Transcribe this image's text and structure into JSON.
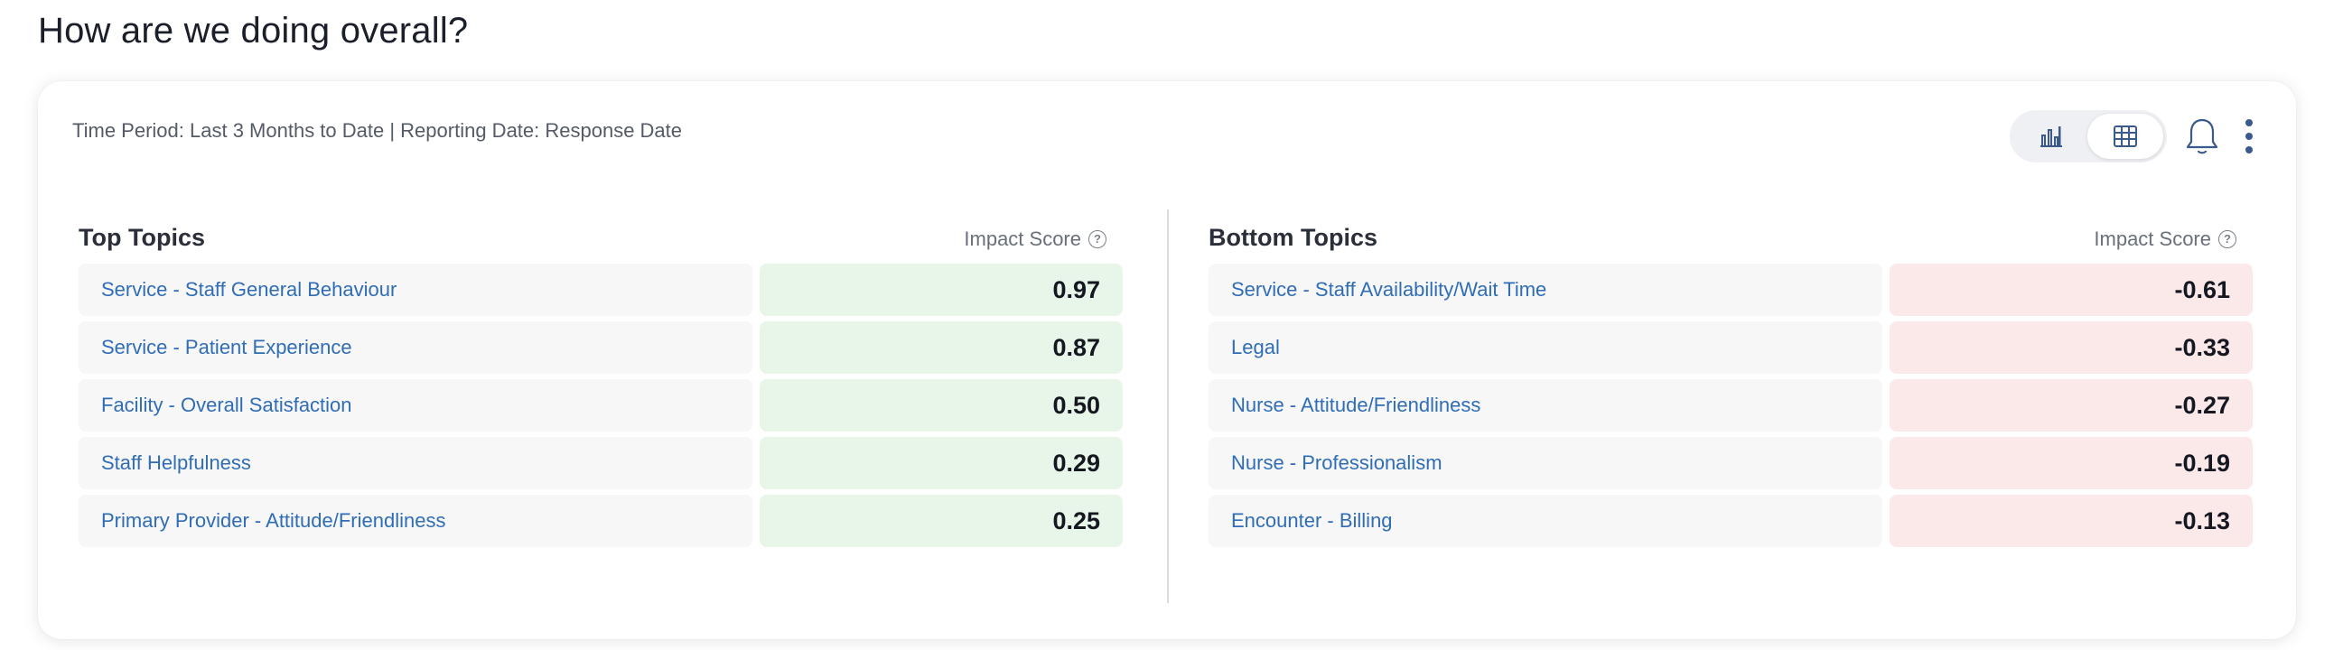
{
  "page": {
    "title": "How are we doing overall?"
  },
  "card": {
    "filter_text": "Time Period: Last 3 Months to Date | Reporting Date: Response Date",
    "view_toggle": {
      "selected": "table",
      "options": [
        "chart-icon",
        "table-icon"
      ]
    },
    "icons": [
      "bar-chart-icon",
      "table-icon",
      "bell-icon",
      "more-vertical-icon"
    ]
  },
  "top_topics": {
    "title": "Top Topics",
    "score_header": "Impact Score",
    "help_glyph": "?",
    "rows": [
      {
        "name": "Service - Staff General Behaviour",
        "score": "0.97"
      },
      {
        "name": "Service - Patient Experience",
        "score": "0.87"
      },
      {
        "name": "Facility - Overall Satisfaction",
        "score": "0.50"
      },
      {
        "name": "Staff Helpfulness",
        "score": "0.29"
      },
      {
        "name": "Primary Provider - Attitude/Friendliness",
        "score": "0.25"
      }
    ]
  },
  "bottom_topics": {
    "title": "Bottom Topics",
    "score_header": "Impact Score",
    "help_glyph": "?",
    "rows": [
      {
        "name": "Service - Staff Availability/Wait Time",
        "score": "-0.61"
      },
      {
        "name": "Legal",
        "score": "-0.33"
      },
      {
        "name": "Nurse - Attitude/Friendliness",
        "score": "-0.27"
      },
      {
        "name": "Nurse - Professionalism",
        "score": "-0.19"
      },
      {
        "name": "Encounter - Billing",
        "score": "-0.13"
      }
    ]
  },
  "colors": {
    "link": "#2f6db5",
    "positive_bg": "#e8f5e9",
    "negative_bg": "#fbe8e8",
    "row_bg": "#f7f7f8",
    "icon": "#3a5a8c"
  }
}
